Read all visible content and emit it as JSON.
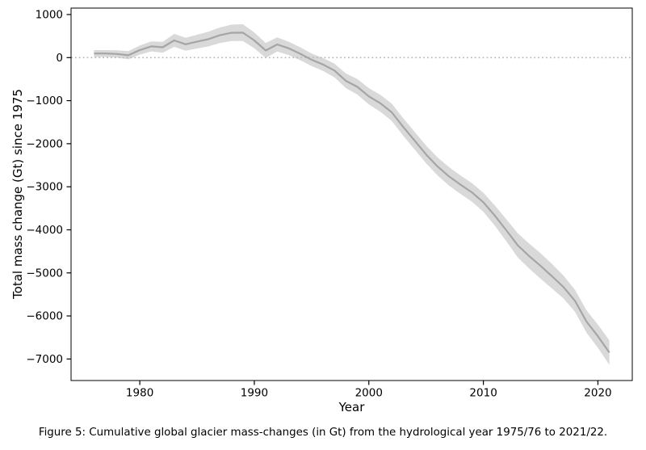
{
  "caption": {
    "text": "Figure 5: Cumulative global glacier mass-changes (in Gt) from the hydrological year 1975/76 to 2021/22."
  },
  "chart_data": {
    "type": "line",
    "title": "",
    "xlabel": "Year",
    "ylabel": "Total mass change (Gt) since 1975",
    "x": [
      1976,
      1977,
      1978,
      1979,
      1980,
      1981,
      1982,
      1983,
      1984,
      1985,
      1986,
      1987,
      1988,
      1989,
      1990,
      1991,
      1992,
      1993,
      1994,
      1995,
      1996,
      1997,
      1998,
      1999,
      2000,
      2001,
      2002,
      2003,
      2004,
      2005,
      2006,
      2007,
      2008,
      2009,
      2010,
      2011,
      2012,
      2013,
      2014,
      2015,
      2016,
      2017,
      2018,
      2019,
      2020,
      2021
    ],
    "series": [
      {
        "name": "Cumulative global glacier mass change (Gt)",
        "values": [
          95,
          95,
          85,
          55,
          175,
          260,
          240,
          400,
          310,
          370,
          430,
          520,
          575,
          580,
          400,
          165,
          305,
          215,
          90,
          -50,
          -160,
          -300,
          -540,
          -680,
          -900,
          -1060,
          -1270,
          -1610,
          -1930,
          -2250,
          -2530,
          -2760,
          -2950,
          -3130,
          -3360,
          -3670,
          -4010,
          -4360,
          -4610,
          -4840,
          -5080,
          -5330,
          -5650,
          -6130,
          -6470,
          -6850
        ],
        "uncertainty": [
          80,
          80,
          85,
          95,
          105,
          115,
          125,
          150,
          150,
          160,
          170,
          180,
          190,
          195,
          185,
          175,
          165,
          155,
          150,
          145,
          150,
          160,
          170,
          180,
          190,
          195,
          200,
          205,
          205,
          205,
          210,
          215,
          215,
          215,
          220,
          235,
          255,
          280,
          290,
          295,
          285,
          265,
          255,
          260,
          270,
          285
        ],
        "line_color": "#a5a5a5",
        "band_color": "#d9d9d9"
      }
    ],
    "zero_line": {
      "y": 0,
      "style": "dotted",
      "color": "#b9b9b9"
    },
    "xlim": [
      1974,
      2023
    ],
    "ylim": [
      -7500,
      1150
    ],
    "x_ticks": {
      "values": [
        1980,
        1990,
        2000,
        2010,
        2020
      ],
      "labels": [
        "1980",
        "1990",
        "2000",
        "2010",
        "2020"
      ]
    },
    "y_ticks": {
      "values": [
        1000,
        0,
        -1000,
        -2000,
        -3000,
        -4000,
        -5000,
        -6000,
        -7000
      ],
      "labels": [
        "1000",
        "0",
        "−1000",
        "−2000",
        "−3000",
        "−4000",
        "−5000",
        "−6000",
        "−7000"
      ]
    },
    "grid": false,
    "legend_position": "none",
    "axis_color": "#000000",
    "tick_label_color": "#000000"
  }
}
